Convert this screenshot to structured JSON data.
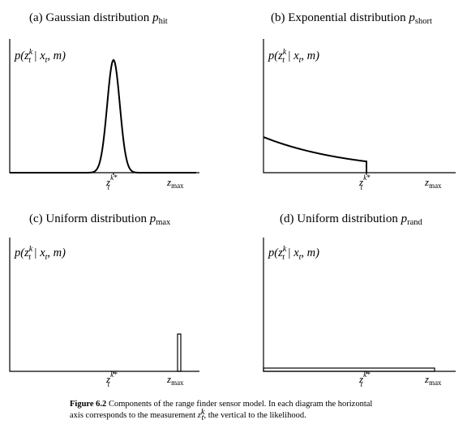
{
  "chart_data": [
    {
      "type": "line",
      "panel_id": "a",
      "title": {
        "prefix": "(a) Gaussian distribution ",
        "symbol": "p",
        "subscript": "hit"
      },
      "ylabel": "p(z_t^k | x_t, m)",
      "x_ticks": [
        {
          "label": "z",
          "sup": "k*",
          "sub": "t"
        },
        {
          "label": "z",
          "sub": "max"
        }
      ],
      "shape": "gaussian centered at z_t^k*",
      "grid": false
    },
    {
      "type": "line",
      "panel_id": "b",
      "title": {
        "prefix": "(b) Exponential distribution ",
        "symbol": "p",
        "subscript": "short"
      },
      "ylabel": "p(z_t^k | x_t, m)",
      "x_ticks": [
        {
          "label": "z",
          "sup": "k*",
          "sub": "t"
        },
        {
          "label": "z",
          "sub": "max"
        }
      ],
      "shape": "exponential decay from 0, truncated at z_t^k*",
      "grid": false
    },
    {
      "type": "line",
      "panel_id": "c",
      "title": {
        "prefix": "(c) Uniform distribution ",
        "symbol": "p",
        "subscript": "max"
      },
      "ylabel": "p(z_t^k | x_t, m)",
      "x_ticks": [
        {
          "label": "z",
          "sup": "k*",
          "sub": "t"
        },
        {
          "label": "z",
          "sub": "max"
        }
      ],
      "shape": "narrow uniform spike at z_max",
      "grid": false
    },
    {
      "type": "line",
      "panel_id": "d",
      "title": {
        "prefix": "(d) Uniform distribution ",
        "symbol": "p",
        "subscript": "rand"
      },
      "ylabel": "p(z_t^k | x_t, m)",
      "x_ticks": [
        {
          "label": "z",
          "sup": "k*",
          "sub": "t"
        },
        {
          "label": "z",
          "sub": "max"
        }
      ],
      "shape": "uniform over [0, z_max]",
      "grid": false
    }
  ],
  "caption": {
    "label": "Figure 6.2",
    "line1": "Components of the range finder sensor model. In each diagram the horizontal",
    "line2_before": "axis corresponds to the measurement ",
    "line2_after": ", the vertical to the likelihood."
  }
}
